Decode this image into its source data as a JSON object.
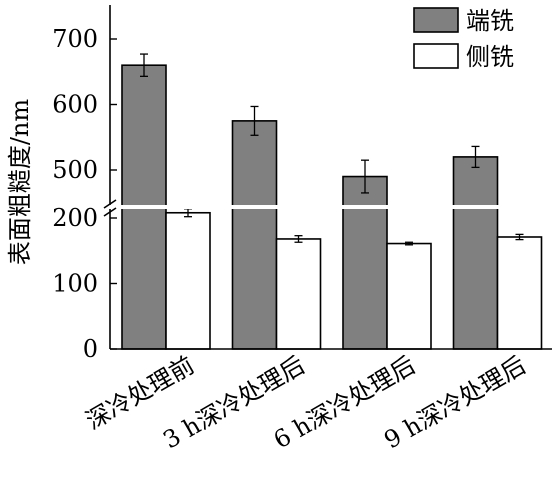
{
  "chart_data": {
    "type": "bar",
    "ylabel": "表面粗糙度/nm",
    "categories": [
      "深冷处理前",
      "3 h深冷处理后",
      "6 h深冷处理后",
      "9 h深冷处理后"
    ],
    "series": [
      {
        "name": "端铣",
        "color": "#808080",
        "values": [
          660,
          575,
          490,
          520
        ],
        "errors": [
          17,
          22,
          25,
          16
        ]
      },
      {
        "name": "侧铣",
        "color": "#ffffff",
        "values": [
          208,
          168,
          161,
          171
        ],
        "errors": [
          6,
          5,
          2,
          4
        ]
      }
    ],
    "y_axis": {
      "broken": true,
      "lower_range": [
        0,
        230
      ],
      "upper_range": [
        440,
        750
      ],
      "lower_ticks": [
        0,
        100,
        200
      ],
      "upper_ticks": [
        500,
        600,
        700
      ]
    },
    "legend_position": "top-right"
  }
}
